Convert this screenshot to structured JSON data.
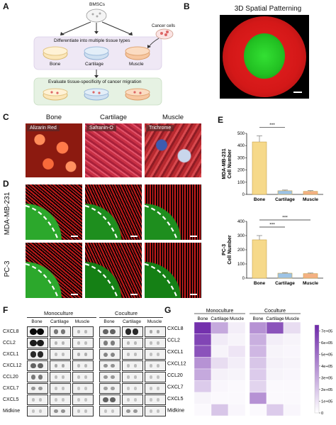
{
  "panel_labels": [
    "A",
    "B",
    "C",
    "D",
    "E",
    "F",
    "G"
  ],
  "panel_a": {
    "top_label": "BMSCs",
    "step1": "Differentiate into multiple tissue types",
    "cancer_label": "Cancer cells",
    "tissues": [
      "Bone",
      "Cartilage",
      "Muscle"
    ],
    "step2": "Evaluate tissue-specificity of cancer migration"
  },
  "panel_b": {
    "title": "3D Spatial Patterning"
  },
  "panel_c": {
    "columns": [
      "Bone",
      "Cartilage",
      "Muscle"
    ],
    "stains": [
      "Alizarin Red",
      "Safranin-O",
      "Trichrome"
    ]
  },
  "panel_d": {
    "rows": [
      "MDA-MB-231",
      "PC-3"
    ]
  },
  "panel_e": {
    "chart_data": [
      {
        "type": "bar",
        "ylabel": "MDA-MB-231\nCell Number",
        "categories": [
          "Bone",
          "Cartilage",
          "Muscle"
        ],
        "values": [
          430,
          30,
          25
        ],
        "errors": [
          50,
          6,
          6
        ],
        "yticks": [
          0,
          100,
          200,
          300,
          400,
          500
        ],
        "ylim": [
          0,
          500
        ],
        "significance": [
          "***",
          "***"
        ],
        "colors": [
          "#f6d98a",
          "#9dc3e6",
          "#f4b183"
        ]
      },
      {
        "type": "bar",
        "ylabel": "PC-3\nCell Number",
        "categories": [
          "Bone",
          "Cartilage",
          "Muscle"
        ],
        "values": [
          270,
          35,
          32
        ],
        "errors": [
          30,
          4,
          4
        ],
        "yticks": [
          0,
          100,
          200,
          300,
          400
        ],
        "ylim": [
          0,
          400
        ],
        "significance": [
          "***",
          "***"
        ],
        "colors": [
          "#f6d98a",
          "#9dc3e6",
          "#f4b183"
        ]
      }
    ]
  },
  "panel_f": {
    "groups": [
      "Monoculture",
      "Coculture"
    ],
    "columns": [
      "Bone",
      "Cartilage",
      "Muscle"
    ],
    "rows": [
      "CXCL8",
      "CCL2",
      "CXCL1",
      "CXCL12",
      "CCL20",
      "CXCL7",
      "CXCL5",
      "Midkine"
    ]
  },
  "panel_g": {
    "chart_data": {
      "type": "heatmap",
      "groups": [
        "Monoculture",
        "Coculture"
      ],
      "columns": [
        "Bone",
        "Cartilage",
        "Muscle"
      ],
      "rows": [
        "CXCL8",
        "CCL2",
        "CXCL1",
        "CXCL12",
        "CCL20",
        "CXCL7",
        "CXCL5",
        "Midkine"
      ],
      "values": [
        [
          720000,
          300000,
          60000,
          380000,
          600000,
          120000
        ],
        [
          650000,
          70000,
          40000,
          280000,
          60000,
          40000
        ],
        [
          600000,
          40000,
          90000,
          250000,
          40000,
          30000
        ],
        [
          380000,
          120000,
          60000,
          200000,
          50000,
          40000
        ],
        [
          300000,
          50000,
          40000,
          180000,
          40000,
          30000
        ],
        [
          180000,
          30000,
          20000,
          150000,
          20000,
          20000
        ],
        [
          40000,
          20000,
          20000,
          380000,
          20000,
          20000
        ],
        [
          20000,
          200000,
          30000,
          20000,
          180000,
          30000
        ]
      ],
      "colorbar_ticks": [
        "7e+05",
        "6e+05",
        "5e+05",
        "4e+05",
        "3e+05",
        "2e+05",
        "1e+05",
        "0"
      ],
      "vmax": 750000
    }
  }
}
